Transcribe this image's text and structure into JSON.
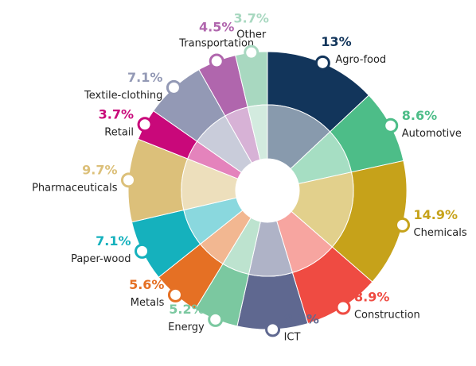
{
  "chart_data": {
    "type": "pie",
    "categories": [
      "Agro-food",
      "Automotive",
      "Chemicals",
      "Construction",
      "ICT",
      "Energy",
      "Metals",
      "Paper-wood",
      "Pharmaceuticals",
      "Retail",
      "Textile-clothing",
      "Transportation",
      "Other"
    ],
    "values": [
      13,
      8.6,
      14.9,
      8.9,
      8.2,
      5.2,
      5.6,
      7.1,
      9.7,
      3.7,
      7.1,
      4.5,
      3.7
    ],
    "value_labels": [
      "13%",
      "8.6%",
      "14.9%",
      "8.9%",
      "8.2%",
      "5.2%",
      "5.6%",
      "7.1%",
      "9.7%",
      "3.7%",
      "7.1%",
      "4.5%",
      "3.7%"
    ],
    "colors": [
      "#12355b",
      "#4dbd88",
      "#c6a21a",
      "#ef4b42",
      "#5f6890",
      "#7bc8a0",
      "#e57024",
      "#15b1bd",
      "#dcc07a",
      "#c9087a",
      "#9399b5",
      "#b066ad",
      "#a8d8c0"
    ]
  }
}
